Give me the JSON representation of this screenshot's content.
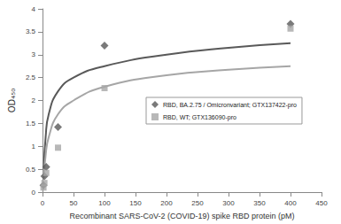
{
  "chart_data": {
    "type": "scatter",
    "x_label": "Recombinant SARS-CoV-2 (COVID-19) spike RBD protein (pM)",
    "y_label": "OD₄₅₀",
    "xlim": [
      0,
      450
    ],
    "xticks": [
      0,
      50,
      100,
      150,
      200,
      250,
      300,
      350,
      400,
      450
    ],
    "ylim": [
      0,
      4
    ],
    "yticks": [
      0,
      0.5,
      1,
      1.5,
      2,
      2.5,
      3,
      3.5,
      4
    ],
    "grid": false,
    "legend": "right",
    "series": [
      {
        "name": "RBD, BA.2.75 / Omicronvariant; GTX137422-pro",
        "color": "#595959",
        "marker": "diamond",
        "x": [
          1.5,
          3,
          6,
          25,
          100,
          400
        ],
        "values": [
          0.15,
          0.35,
          0.55,
          1.42,
          3.2,
          3.67
        ],
        "fit": {
          "x": [
            2,
            5,
            10,
            25,
            50,
            100,
            200,
            300,
            400
          ],
          "values": [
            0.5,
            1.2,
            1.7,
            2.2,
            2.5,
            2.75,
            3.0,
            3.15,
            3.25
          ]
        }
      },
      {
        "name": "RBD, WT; GTX136090-pro",
        "color": "#a6a6a6",
        "marker": "square",
        "x": [
          1.5,
          3,
          6,
          25,
          100,
          400
        ],
        "values": [
          0.1,
          0.2,
          0.42,
          0.97,
          2.27,
          3.57
        ],
        "fit": {
          "x": [
            2,
            5,
            10,
            25,
            50,
            100,
            200,
            300,
            400
          ],
          "values": [
            0.3,
            0.8,
            1.2,
            1.7,
            2.0,
            2.3,
            2.55,
            2.67,
            2.75
          ]
        }
      }
    ]
  }
}
